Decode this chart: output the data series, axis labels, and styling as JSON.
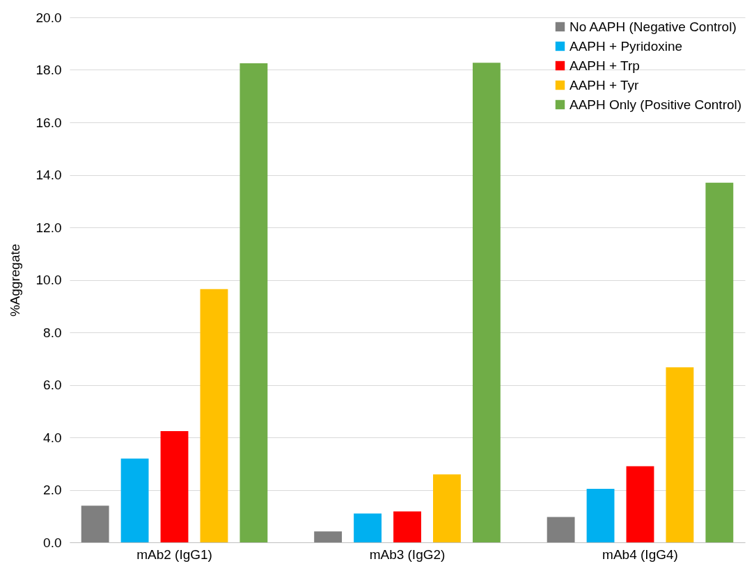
{
  "chart_data": {
    "type": "bar",
    "ylabel": "%Aggregate",
    "categories": [
      "mAb2 (IgG1)",
      "mAb3 (IgG2)",
      "mAb4 (IgG4)"
    ],
    "series": [
      {
        "name": "No AAPH (Negative Control)",
        "color": "#7f7f7f",
        "values": [
          1.4,
          0.42,
          0.97
        ]
      },
      {
        "name": "AAPH + Pyridoxine",
        "color": "#00b0f0",
        "values": [
          3.19,
          1.1,
          2.04
        ]
      },
      {
        "name": "AAPH + Trp",
        "color": "#ff0000",
        "values": [
          4.24,
          1.18,
          2.9
        ]
      },
      {
        "name": "AAPH + Tyr",
        "color": "#ffc000",
        "values": [
          9.65,
          2.59,
          6.67
        ]
      },
      {
        "name": "AAPH Only (Positive Control)",
        "color": "#70ad47",
        "values": [
          18.25,
          18.27,
          13.7
        ]
      }
    ],
    "ylim": [
      0,
      20
    ],
    "yticks": [
      {
        "value": 0,
        "label": "0.0"
      },
      {
        "value": 2,
        "label": "2.0"
      },
      {
        "value": 4,
        "label": "4.0"
      },
      {
        "value": 6,
        "label": "6.0"
      },
      {
        "value": 8,
        "label": "8.0"
      },
      {
        "value": 10,
        "label": "10.0"
      },
      {
        "value": 12,
        "label": "12.0"
      },
      {
        "value": 14,
        "label": "14.0"
      },
      {
        "value": 16,
        "label": "16.0"
      },
      {
        "value": 18,
        "label": "18.0"
      },
      {
        "value": 20,
        "label": "20.0"
      }
    ],
    "grid": "y",
    "legend": "top right"
  }
}
